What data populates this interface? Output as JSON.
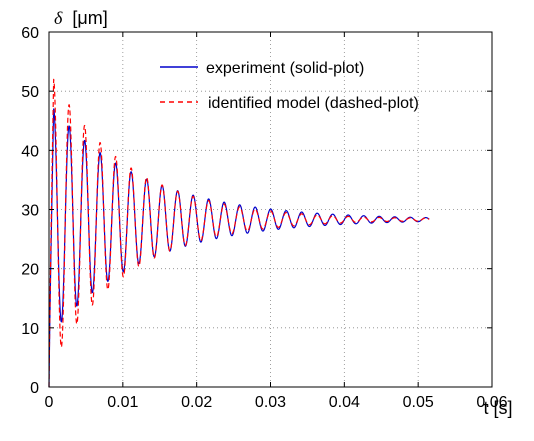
{
  "chart_data": {
    "type": "line",
    "title": "",
    "xlabel": "t [s]",
    "ylabel": "δ [μm]",
    "ylabel_symbol": "δ",
    "ylabel_unit": "[μm]",
    "xlim": [
      0,
      0.06
    ],
    "ylim": [
      0,
      60
    ],
    "xticks": [
      0,
      0.01,
      0.02,
      0.03,
      0.04,
      0.05,
      0.06
    ],
    "xtick_labels": [
      "0",
      "0.01",
      "0.02",
      "0.03",
      "0.04",
      "0.05",
      "0.06"
    ],
    "yticks": [
      0,
      10,
      20,
      30,
      40,
      50,
      60
    ],
    "ytick_labels": [
      "0",
      "10",
      "20",
      "30",
      "40",
      "50",
      "60"
    ],
    "grid": true,
    "legend_position": "top-right",
    "series": [
      {
        "name": "experiment (solid-plot)",
        "style": "solid",
        "color": "#0000cc",
        "final_value": 28.3,
        "initial_peak": 47,
        "first_trough": 9.5,
        "period": 0.0021,
        "decay_time": 0.0125,
        "t_end": 0.0515
      },
      {
        "name": "identified model (dashed-plot)",
        "style": "dashed",
        "color": "#ff0000",
        "final_value": 28.3,
        "initial_peak": 52,
        "first_trough": 4.5,
        "period": 0.0021,
        "decay_time": 0.0105,
        "t_end": 0.0515
      }
    ]
  }
}
